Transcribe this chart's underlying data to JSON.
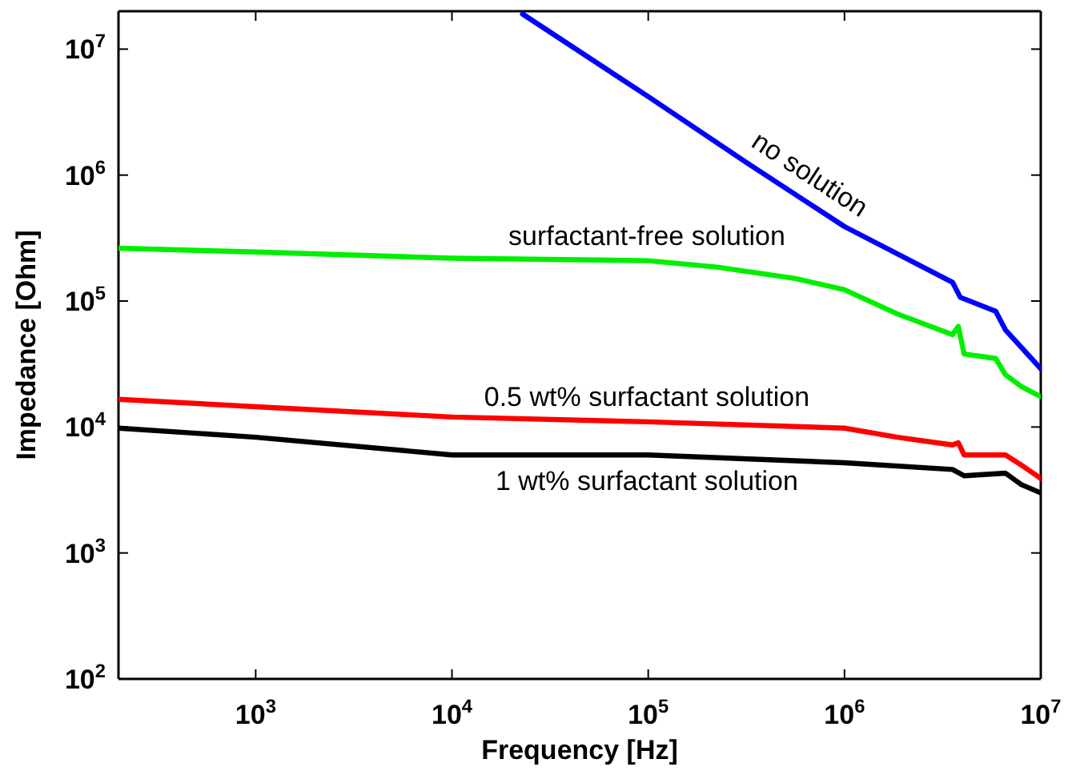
{
  "chart_data": {
    "type": "line",
    "xlabel": "Frequency [Hz]",
    "ylabel": "Impedance [Ohm]",
    "log": "xy",
    "xlim": [
      200,
      10000000
    ],
    "ylim": [
      100,
      20000000
    ],
    "xticks": [
      {
        "value": 1000,
        "label": "10$^{3}$"
      },
      {
        "value": 10000,
        "label": "10$^{4}$"
      },
      {
        "value": 100000,
        "label": "10$^{5}$"
      },
      {
        "value": 1000000,
        "label": "10$^{6}$"
      },
      {
        "value": 10000000,
        "label": "10$^{7}$"
      }
    ],
    "yticks": [
      {
        "value": 100,
        "label": "10$^{2}$"
      },
      {
        "value": 1000,
        "label": "10$^{3}$"
      },
      {
        "value": 10000,
        "label": "10$^{4}$"
      },
      {
        "value": 100000,
        "label": "10$^{5}$"
      },
      {
        "value": 1000000,
        "label": "10$^{6}$"
      },
      {
        "value": 10000000,
        "label": "10$^{7}$"
      }
    ],
    "grid": false,
    "legend": false,
    "marker": "none",
    "line_style": "solid",
    "series": [
      {
        "name": "no solution",
        "color": "#0000ff",
        "x": [
          22900,
          100000,
          316000,
          1000000,
          3550000,
          3890000,
          5890000,
          6610000,
          10000000
        ],
        "values": [
          19000000,
          4200000,
          1260000,
          390000,
          141000,
          107000,
          83000,
          59000,
          29000
        ]
      },
      {
        "name": "surfactant-free solution",
        "color": "#00ee00",
        "x": [
          200,
          1000,
          10000,
          100000,
          224000,
          562000,
          1000000,
          1860000,
          3550000,
          3800000,
          4070000,
          5890000,
          6610000,
          7940000,
          10000000
        ],
        "values": [
          263000,
          245000,
          219000,
          209000,
          186000,
          151000,
          123000,
          79000,
          54000,
          63000,
          38000,
          35000,
          26000,
          21000,
          17400
        ]
      },
      {
        "name": "0.5 wt% surfactant solution",
        "color": "#ff0000",
        "x": [
          200,
          1000,
          10000,
          100000,
          1000000,
          1860000,
          3550000,
          3800000,
          4070000,
          6610000,
          7940000,
          10000000
        ],
        "values": [
          16600,
          14500,
          12000,
          11000,
          9800,
          8300,
          7200,
          7500,
          6000,
          6000,
          5000,
          3900
        ]
      },
      {
        "name": "1 wt% surfactant solution",
        "color": "#000000",
        "x": [
          200,
          1000,
          10000,
          100000,
          1000000,
          3550000,
          4070000,
          6610000,
          7940000,
          10000000
        ],
        "values": [
          9800,
          8300,
          6000,
          6000,
          5200,
          4600,
          4100,
          4300,
          3500,
          3000
        ]
      }
    ]
  }
}
